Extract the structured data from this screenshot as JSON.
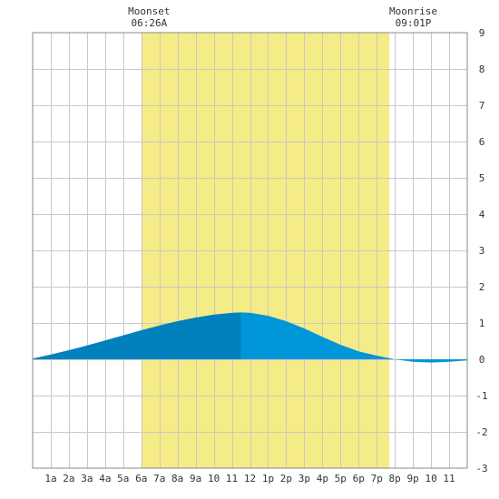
{
  "chart_data": {
    "type": "area",
    "title": "",
    "xlabel": "",
    "ylabel": "",
    "x_tick_labels": [
      "1a",
      "2a",
      "3a",
      "4a",
      "5a",
      "6a",
      "7a",
      "8a",
      "9a",
      "10",
      "11",
      "12",
      "1p",
      "2p",
      "3p",
      "4p",
      "5p",
      "6p",
      "7p",
      "8p",
      "9p",
      "10",
      "11"
    ],
    "x_range_hours": [
      0,
      24
    ],
    "ylim": [
      -3,
      9
    ],
    "y_ticks": [
      -3,
      -2,
      -1,
      0,
      1,
      2,
      3,
      4,
      5,
      6,
      7,
      8,
      9
    ],
    "grid": true,
    "daylight_band_hours": [
      6.0,
      19.7
    ],
    "peak_hour": 11.5,
    "annotations": [
      {
        "label": "Moonset",
        "time": "06:26A",
        "hour": 6.43
      },
      {
        "label": "Moonrise",
        "time": "09:01P",
        "hour": 21.02
      }
    ],
    "series": [
      {
        "x": [
          0,
          1,
          2,
          3,
          4,
          5,
          6,
          7,
          8,
          9,
          10,
          11,
          11.5,
          12,
          13,
          14,
          15,
          16,
          17,
          18,
          19,
          20,
          21,
          22,
          23,
          24
        ],
        "values": [
          0.02,
          0.13,
          0.25,
          0.38,
          0.52,
          0.66,
          0.8,
          0.93,
          1.05,
          1.15,
          1.23,
          1.28,
          1.29,
          1.28,
          1.2,
          1.05,
          0.85,
          0.62,
          0.4,
          0.22,
          0.1,
          0.0,
          -0.07,
          -0.09,
          -0.07,
          -0.03
        ]
      }
    ],
    "colors": {
      "daylight_band": "#f5ec87",
      "area_before_peak": "#0080bd",
      "area_after_peak": "#0096d9",
      "grid": "#c8c8c8"
    }
  }
}
